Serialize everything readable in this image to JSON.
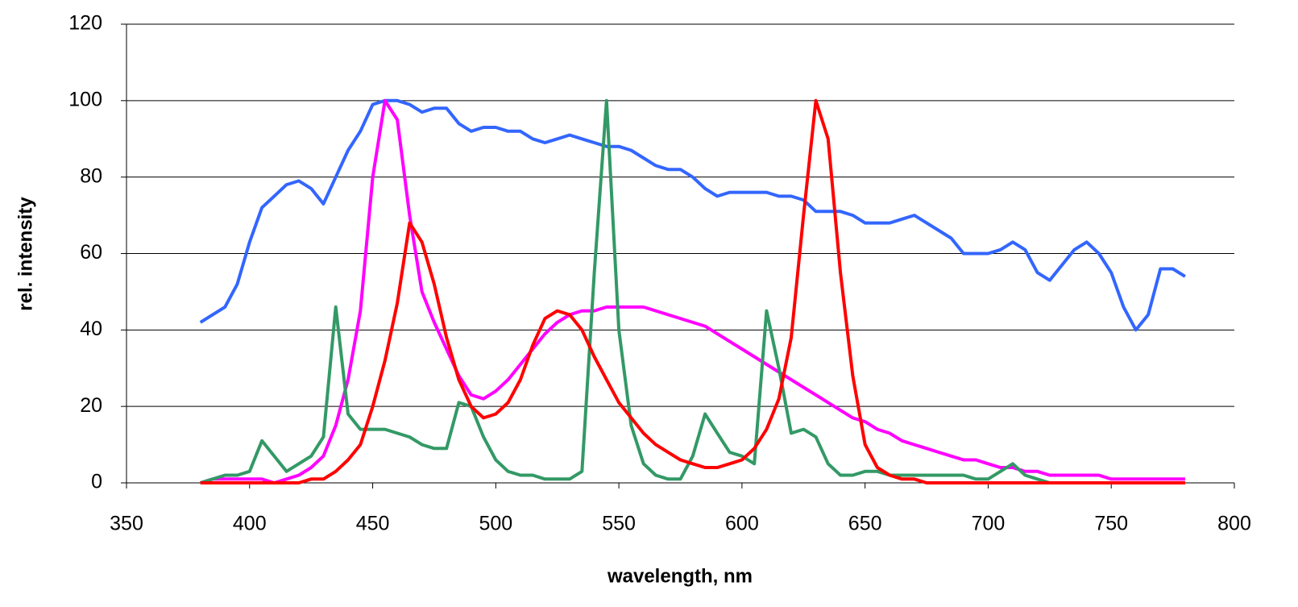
{
  "chart_data": {
    "type": "line",
    "x_label": "wavelength, nm",
    "y_label": "rel. intensity",
    "xlim": [
      350,
      800
    ],
    "xticks": [
      350,
      400,
      450,
      500,
      550,
      600,
      650,
      700,
      750,
      800
    ],
    "ylim": [
      0,
      120
    ],
    "yticks": [
      0,
      20,
      40,
      60,
      80,
      100,
      120
    ],
    "grid": true,
    "x": [
      380,
      385,
      390,
      395,
      400,
      405,
      410,
      415,
      420,
      425,
      430,
      435,
      440,
      445,
      450,
      455,
      460,
      465,
      470,
      475,
      480,
      485,
      490,
      495,
      500,
      505,
      510,
      515,
      520,
      525,
      530,
      535,
      540,
      545,
      550,
      555,
      560,
      565,
      570,
      575,
      580,
      585,
      590,
      595,
      600,
      605,
      610,
      615,
      620,
      625,
      630,
      635,
      640,
      645,
      650,
      655,
      660,
      665,
      670,
      675,
      680,
      685,
      690,
      695,
      700,
      705,
      710,
      715,
      720,
      725,
      730,
      735,
      740,
      745,
      750,
      755,
      760,
      765,
      770,
      775,
      780
    ],
    "series": [
      {
        "color": "#3366ff",
        "values": [
          42,
          44,
          46,
          52,
          63,
          72,
          75,
          78,
          79,
          77,
          73,
          80,
          87,
          92,
          99,
          100,
          100,
          99,
          97,
          98,
          98,
          94,
          92,
          93,
          93,
          92,
          92,
          90,
          89,
          90,
          91,
          90,
          89,
          88,
          88,
          87,
          85,
          83,
          82,
          82,
          80,
          77,
          75,
          76,
          76,
          76,
          76,
          75,
          75,
          74,
          71,
          71,
          71,
          70,
          68,
          68,
          68,
          69,
          70,
          68,
          66,
          64,
          60,
          60,
          60,
          61,
          63,
          61,
          55,
          53,
          57,
          61,
          63,
          60,
          55,
          46,
          40,
          44,
          56,
          56,
          54
        ]
      },
      {
        "color": "#ff00ff",
        "values": [
          0,
          1,
          1,
          1,
          1,
          1,
          0,
          1,
          2,
          4,
          7,
          15,
          27,
          45,
          80,
          100,
          95,
          70,
          50,
          42,
          35,
          28,
          23,
          22,
          24,
          27,
          31,
          35,
          39,
          42,
          44,
          45,
          45,
          46,
          46,
          46,
          46,
          45,
          44,
          43,
          42,
          41,
          39,
          37,
          35,
          33,
          31,
          29,
          27,
          25,
          23,
          21,
          19,
          17,
          16,
          14,
          13,
          11,
          10,
          9,
          8,
          7,
          6,
          6,
          5,
          4,
          4,
          3,
          3,
          2,
          2,
          2,
          2,
          2,
          1,
          1,
          1,
          1,
          1,
          1,
          1
        ]
      },
      {
        "color": "#339966",
        "values": [
          0,
          1,
          2,
          2,
          3,
          11,
          7,
          3,
          5,
          7,
          12,
          46,
          18,
          14,
          14,
          14,
          13,
          12,
          10,
          9,
          9,
          21,
          20,
          12,
          6,
          3,
          2,
          2,
          1,
          1,
          1,
          3,
          55,
          100,
          40,
          15,
          5,
          2,
          1,
          1,
          7,
          18,
          13,
          8,
          7,
          5,
          45,
          30,
          13,
          14,
          12,
          5,
          2,
          2,
          3,
          3,
          2,
          2,
          2,
          2,
          2,
          2,
          2,
          1,
          1,
          3,
          5,
          2,
          1,
          0,
          0,
          0,
          0,
          0,
          0,
          0,
          0,
          0,
          0,
          0,
          0
        ]
      },
      {
        "color": "#ff0000",
        "values": [
          0,
          0,
          0,
          0,
          0,
          0,
          0,
          0,
          0,
          1,
          1,
          3,
          6,
          10,
          20,
          32,
          47,
          68,
          63,
          52,
          38,
          27,
          20,
          17,
          18,
          21,
          27,
          36,
          43,
          45,
          44,
          40,
          33,
          27,
          21,
          17,
          13,
          10,
          8,
          6,
          5,
          4,
          4,
          5,
          6,
          9,
          14,
          22,
          38,
          70,
          100,
          90,
          55,
          28,
          10,
          4,
          2,
          1,
          1,
          0,
          0,
          0,
          0,
          0,
          0,
          0,
          0,
          0,
          0,
          0,
          0,
          0,
          0,
          0,
          0,
          0,
          0,
          0,
          0,
          0,
          0
        ]
      }
    ]
  }
}
